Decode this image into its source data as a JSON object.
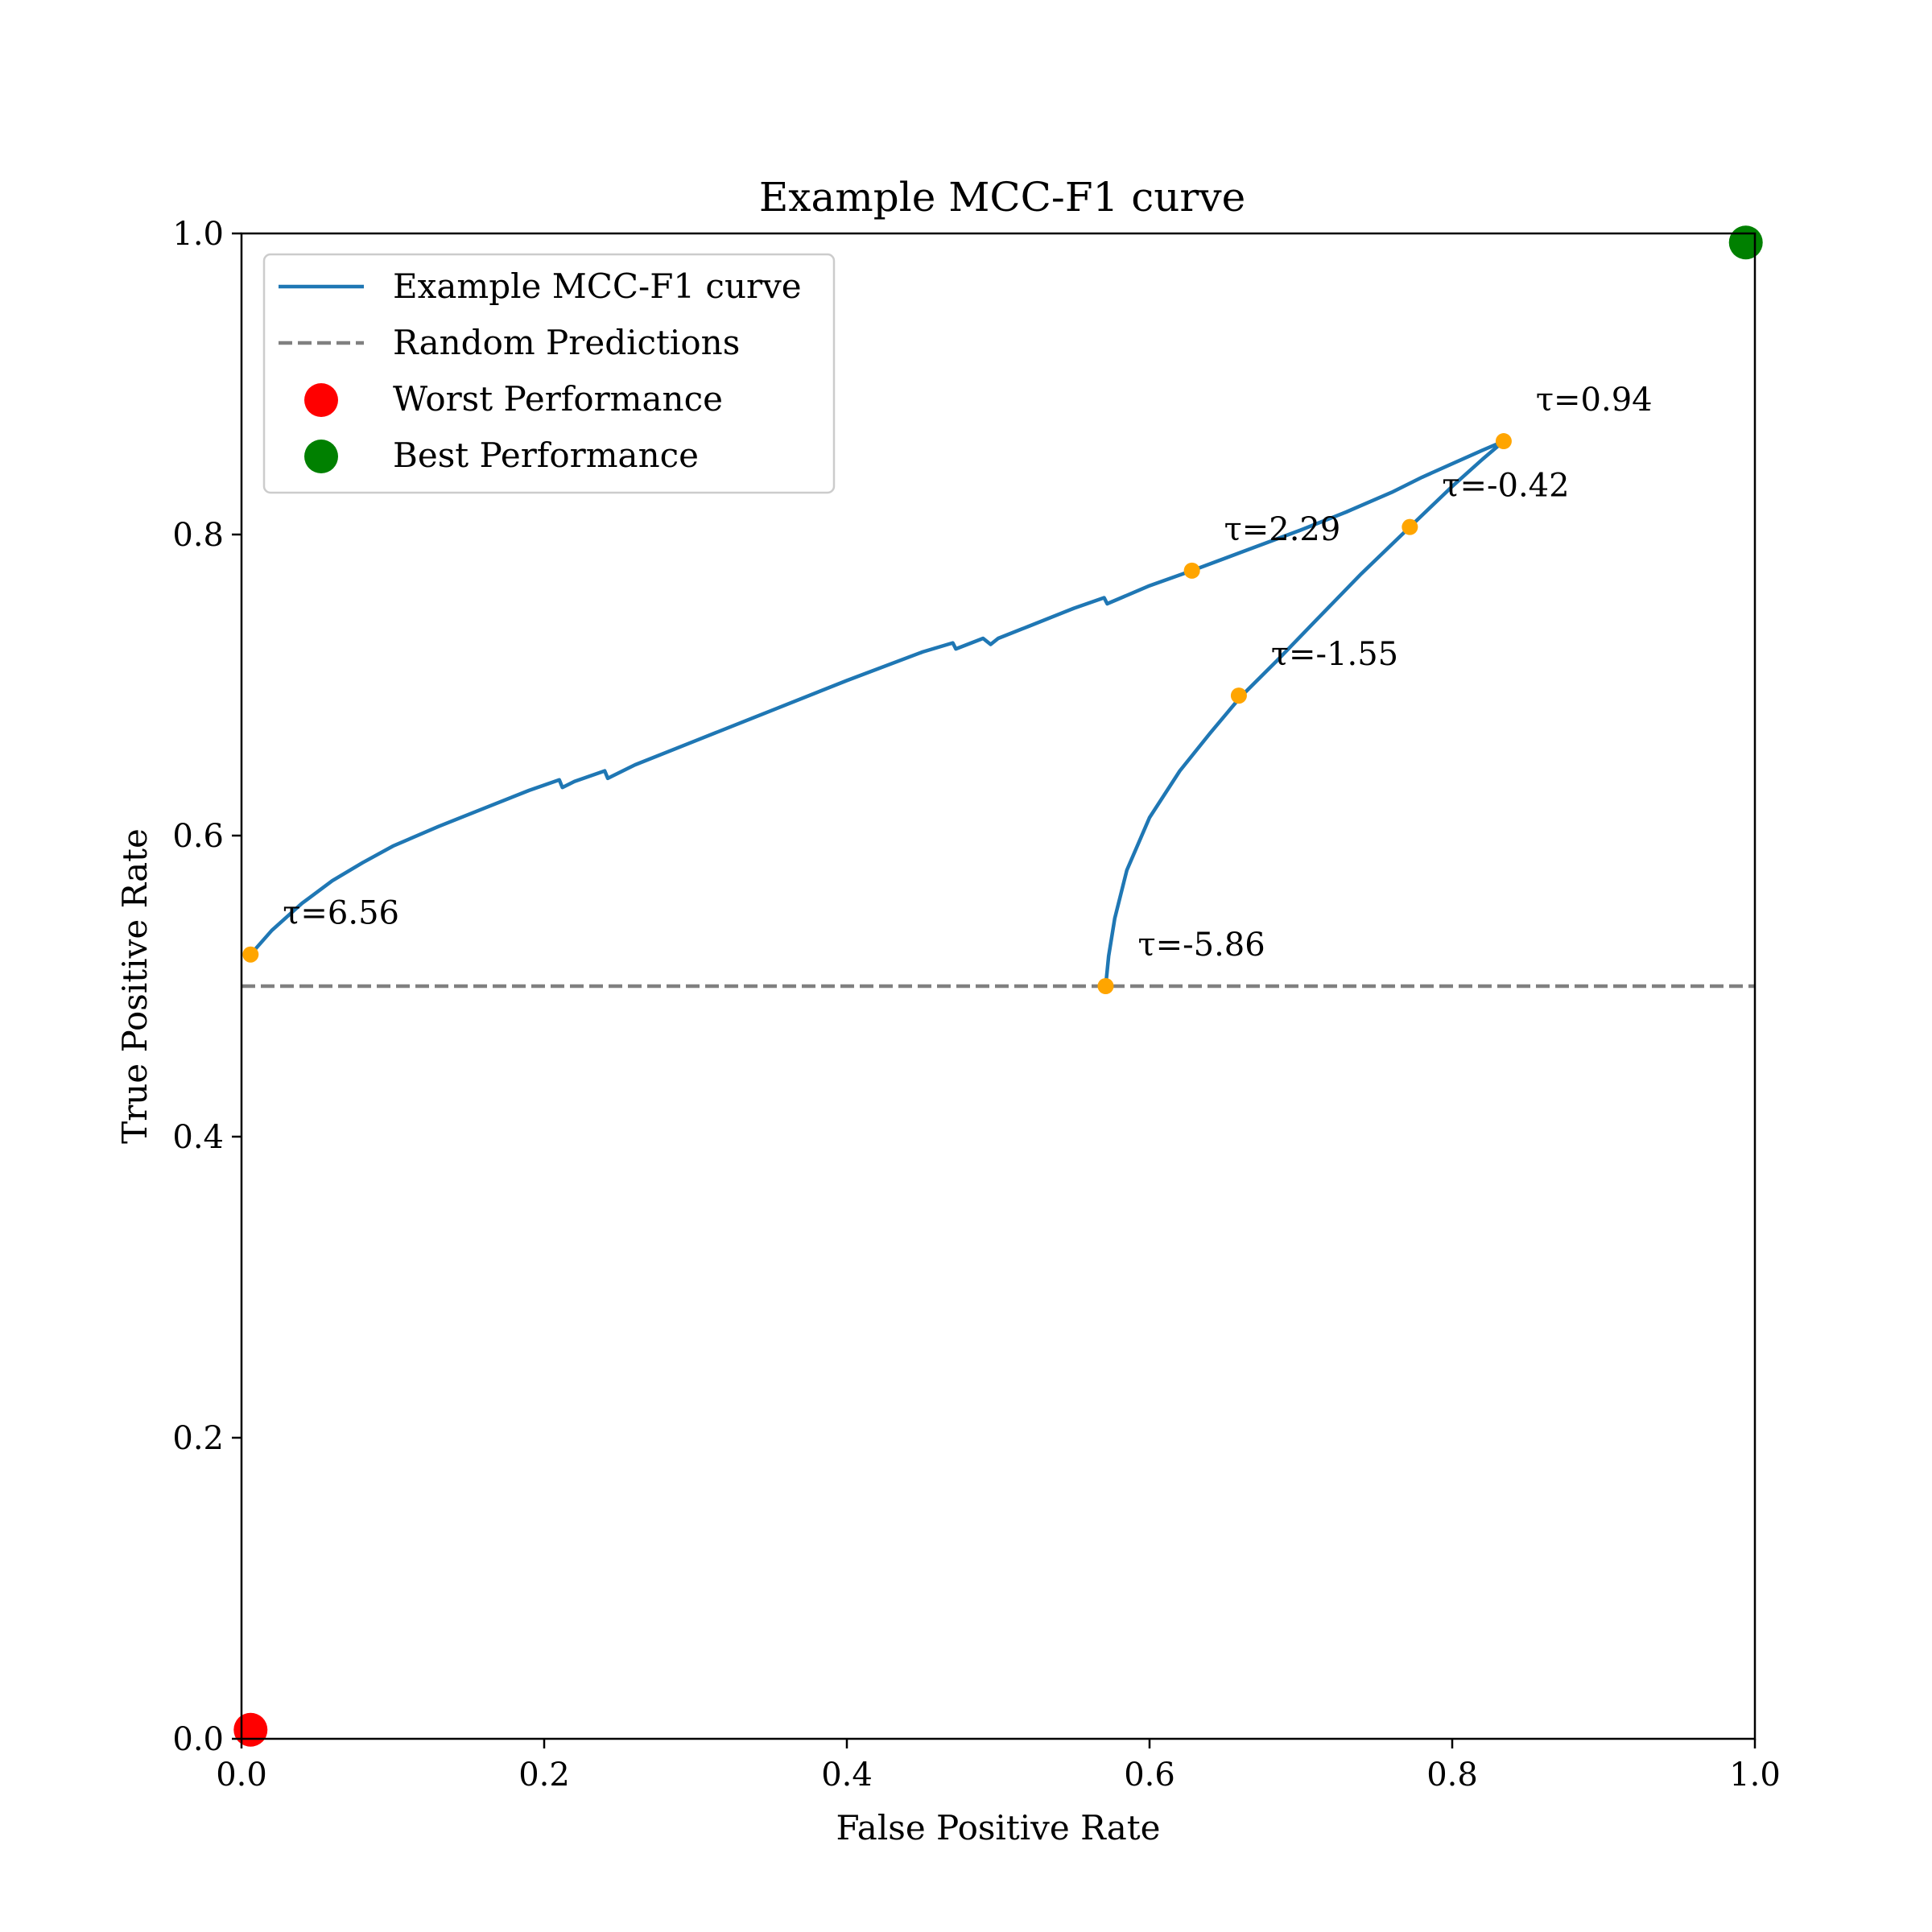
{
  "chart_data": {
    "type": "line",
    "title": "Example MCC-F1 curve",
    "xlabel": "False Positive Rate",
    "ylabel": "True Positive Rate",
    "xlim": [
      0,
      1
    ],
    "ylim": [
      0,
      1
    ],
    "xticks": [
      "0.0",
      "0.2",
      "0.4",
      "0.6",
      "0.8",
      "1.0"
    ],
    "yticks": [
      "0.0",
      "0.2",
      "0.4",
      "0.6",
      "0.8",
      "1.0"
    ],
    "grid": false,
    "legend_placement": "top-left",
    "legend": [
      {
        "label": "Example MCC-F1 curve",
        "kind": "line",
        "color": "#1f77b4"
      },
      {
        "label": "Random Predictions",
        "kind": "dashed",
        "color": "#808080"
      },
      {
        "label": "Worst Performance",
        "kind": "marker",
        "color": "#ff0000"
      },
      {
        "label": "Best Performance",
        "kind": "marker",
        "color": "#008000"
      }
    ],
    "series": [
      {
        "name": "Example MCC-F1 curve",
        "color": "#1f77b4",
        "x": [
          0.006,
          0.02,
          0.04,
          0.06,
          0.08,
          0.1,
          0.13,
          0.16,
          0.19,
          0.21,
          0.212,
          0.22,
          0.24,
          0.242,
          0.26,
          0.3,
          0.35,
          0.4,
          0.45,
          0.47,
          0.472,
          0.49,
          0.495,
          0.5,
          0.52,
          0.55,
          0.57,
          0.572,
          0.6,
          0.628,
          0.66,
          0.7,
          0.73,
          0.76,
          0.78,
          0.8,
          0.82,
          0.834,
          0.82,
          0.8,
          0.772,
          0.74,
          0.71,
          0.685,
          0.66,
          0.64,
          0.62,
          0.6,
          0.585,
          0.577,
          0.573,
          0.571
        ],
        "y": [
          0.521,
          0.537,
          0.555,
          0.57,
          0.582,
          0.593,
          0.606,
          0.618,
          0.63,
          0.637,
          0.632,
          0.636,
          0.643,
          0.638,
          0.647,
          0.663,
          0.683,
          0.703,
          0.722,
          0.728,
          0.724,
          0.731,
          0.727,
          0.731,
          0.739,
          0.751,
          0.758,
          0.754,
          0.766,
          0.776,
          0.788,
          0.803,
          0.815,
          0.828,
          0.838,
          0.847,
          0.856,
          0.862,
          0.85,
          0.832,
          0.805,
          0.774,
          0.743,
          0.717,
          0.692,
          0.668,
          0.643,
          0.612,
          0.577,
          0.545,
          0.52,
          0.5
        ]
      },
      {
        "name": "Random Predictions",
        "color": "#808080",
        "x": [
          0,
          1
        ],
        "y": [
          0.5,
          0.5
        ]
      }
    ],
    "threshold_points": [
      {
        "x": 0.006,
        "y": 0.521,
        "label": "τ=6.56"
      },
      {
        "x": 0.628,
        "y": 0.776,
        "label": "τ=2.29"
      },
      {
        "x": 0.834,
        "y": 0.862,
        "label": "τ=0.94"
      },
      {
        "x": 0.772,
        "y": 0.805,
        "label": "τ=-0.42"
      },
      {
        "x": 0.659,
        "y": 0.693,
        "label": "τ=-1.55"
      },
      {
        "x": 0.571,
        "y": 0.5,
        "label": "τ=-5.86"
      }
    ],
    "threshold_color": "#ffa500",
    "special_points": [
      {
        "name": "Worst Performance",
        "x": 0.006,
        "y": 0.006,
        "color": "#ff0000"
      },
      {
        "name": "Best Performance",
        "x": 0.994,
        "y": 0.994,
        "color": "#008000"
      }
    ]
  }
}
